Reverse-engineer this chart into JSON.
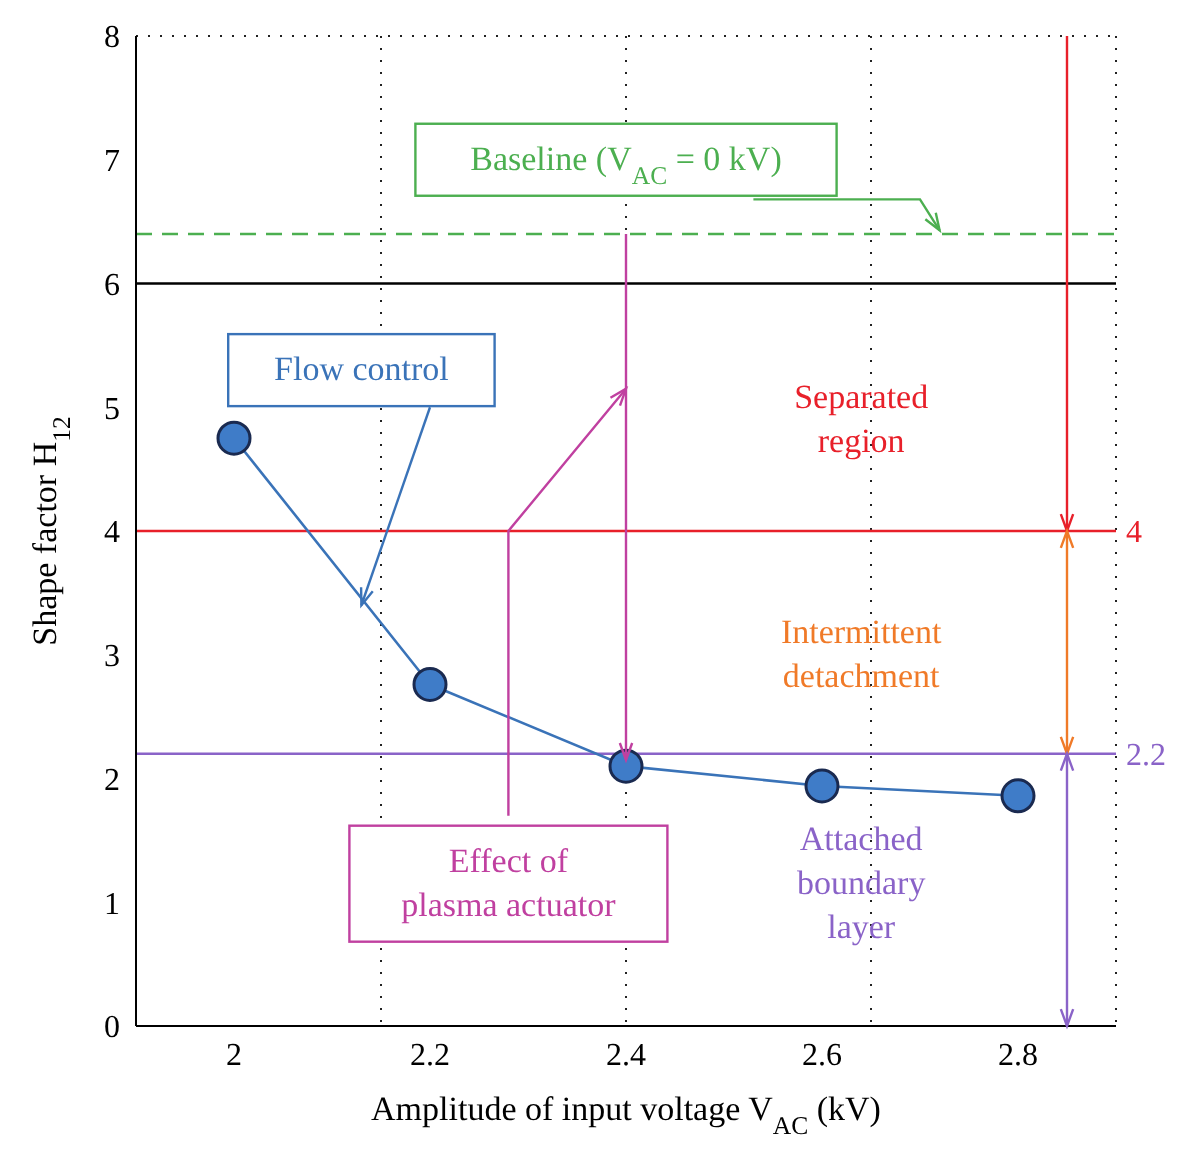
{
  "chart_data": {
    "type": "line",
    "xlabel": "Amplitude of input voltage V$_{AC}$ (kV)",
    "ylabel": "Shape factor H$_{12}$",
    "x": [
      2,
      2.2,
      2.4,
      2.6,
      2.8
    ],
    "series": [
      {
        "color": "#3a73b8",
        "values": [
          4.75,
          2.76,
          2.1,
          1.94,
          1.86
        ]
      }
    ],
    "xlim": [
      1.9,
      2.9
    ],
    "xticks": [
      2,
      2.2,
      2.4,
      2.6,
      2.8
    ],
    "ylim": [
      0,
      8
    ],
    "yticks": [
      0,
      1,
      2,
      3,
      4,
      5,
      6,
      7,
      8
    ],
    "grid": true,
    "marker": "circle",
    "line_style": "solid",
    "ref_lines": [
      {
        "axis": "y",
        "value": 6,
        "color": "#000000"
      },
      {
        "axis": "y",
        "value": 6.4,
        "color": "#4caf50",
        "line_style": "dashed"
      },
      {
        "axis": "y",
        "value": 4,
        "label": "4",
        "color": "#e8202a"
      },
      {
        "axis": "y",
        "value": 2.2,
        "label": "2.2",
        "color": "#8a63c8"
      }
    ],
    "annotations": [
      {
        "text": "Baseline (V$_{AC}$ = 0 kV)",
        "x": 2.72,
        "y": 6.4
      },
      {
        "text": "Flow control",
        "x": 2.13,
        "y": 3.4
      },
      "Separated region",
      "Intermittent detachment",
      "Effect of plasma actuator",
      "Attached boundary layer"
    ]
  }
}
